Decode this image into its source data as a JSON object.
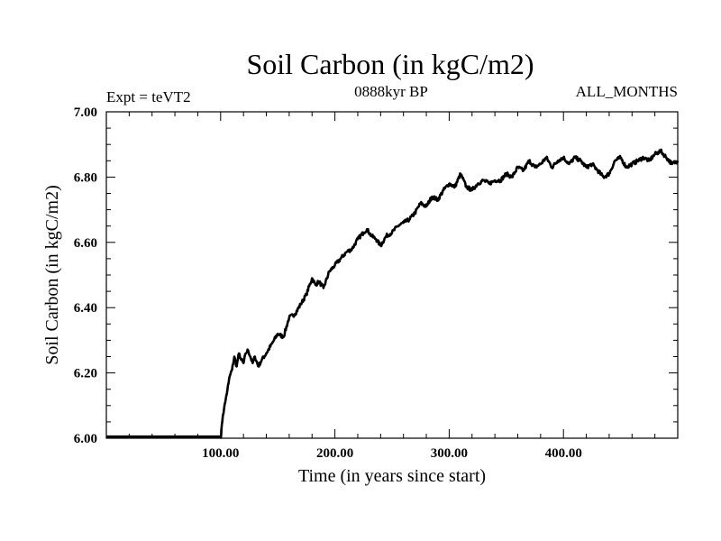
{
  "chart_data": {
    "type": "line",
    "title": "Soil Carbon (in kgC/m2)",
    "left_label": "Expt = teVT2",
    "center_label": "0888kyr BP",
    "right_label": "ALL_MONTHS",
    "xlabel": "Time (in years since start)",
    "ylabel": "Soil Carbon (in kgC/m2)",
    "xlim": [
      0,
      500
    ],
    "ylim": [
      6.0,
      7.0
    ],
    "x_ticks": [
      100,
      200,
      300,
      400
    ],
    "x_tick_labels": [
      "100.00",
      "200.00",
      "300.00",
      "400.00"
    ],
    "y_ticks": [
      6.0,
      6.2,
      6.4,
      6.6,
      6.8,
      7.0
    ],
    "y_tick_labels": [
      "6.00",
      "6.20",
      "6.40",
      "6.60",
      "6.80",
      "7.00"
    ],
    "series": [
      {
        "name": "Soil Carbon",
        "color": "#000000",
        "x": [
          0,
          100,
          100.5,
          101,
          102,
          103,
          104,
          105,
          106,
          107,
          108,
          110,
          112,
          114,
          116,
          118,
          120,
          122,
          124,
          126,
          128,
          130,
          133,
          136,
          140,
          145,
          150,
          155,
          160,
          165,
          170,
          175,
          180,
          183,
          186,
          190,
          195,
          200,
          205,
          210,
          215,
          220,
          225,
          228,
          232,
          236,
          240,
          245,
          250,
          255,
          260,
          265,
          270,
          275,
          280,
          285,
          290,
          295,
          300,
          305,
          310,
          315,
          320,
          325,
          330,
          335,
          340,
          345,
          350,
          355,
          360,
          365,
          370,
          375,
          380,
          385,
          390,
          395,
          400,
          405,
          410,
          415,
          420,
          425,
          430,
          435,
          440,
          445,
          450,
          455,
          460,
          465,
          470,
          475,
          480,
          485,
          490,
          495,
          500
        ],
        "values": [
          6.005,
          6.005,
          6.01,
          6.04,
          6.07,
          6.09,
          6.11,
          6.13,
          6.15,
          6.17,
          6.19,
          6.21,
          6.25,
          6.22,
          6.26,
          6.24,
          6.23,
          6.26,
          6.27,
          6.25,
          6.23,
          6.25,
          6.22,
          6.24,
          6.26,
          6.29,
          6.32,
          6.31,
          6.37,
          6.38,
          6.41,
          6.44,
          6.49,
          6.47,
          6.48,
          6.46,
          6.51,
          6.53,
          6.55,
          6.57,
          6.58,
          6.61,
          6.63,
          6.64,
          6.62,
          6.61,
          6.59,
          6.62,
          6.63,
          6.65,
          6.66,
          6.67,
          6.69,
          6.72,
          6.71,
          6.74,
          6.73,
          6.76,
          6.78,
          6.77,
          6.81,
          6.77,
          6.76,
          6.78,
          6.79,
          6.78,
          6.79,
          6.79,
          6.81,
          6.8,
          6.83,
          6.82,
          6.85,
          6.83,
          6.84,
          6.86,
          6.83,
          6.85,
          6.86,
          6.84,
          6.86,
          6.85,
          6.83,
          6.84,
          6.82,
          6.8,
          6.81,
          6.85,
          6.86,
          6.83,
          6.84,
          6.85,
          6.86,
          6.85,
          6.87,
          6.88,
          6.86,
          6.84,
          6.85
        ]
      }
    ]
  }
}
